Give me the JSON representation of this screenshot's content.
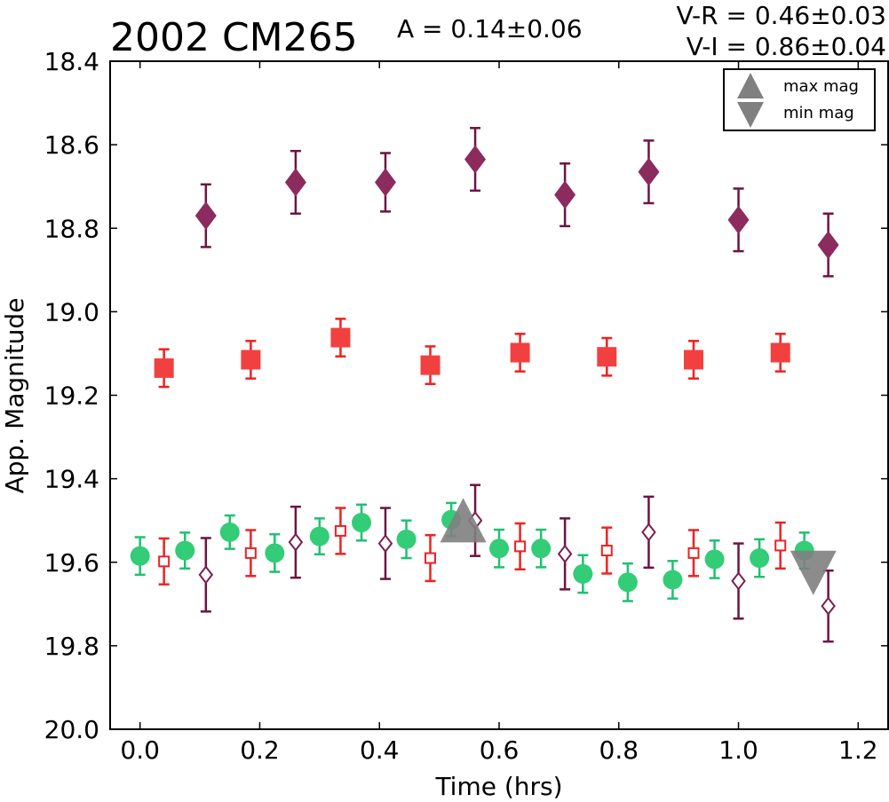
{
  "chart_data": {
    "type": "scatter",
    "title": "2002 CM265",
    "annotations": {
      "amplitude": "A  = 0.14±0.06",
      "vr": "V-R = 0.46±0.03",
      "vi": "V-I  = 0.86±0.04"
    },
    "xlabel": "Time (hrs)",
    "ylabel": "App. Magnitude",
    "xlim": [
      -0.05,
      1.25
    ],
    "ylim": [
      20.0,
      18.4
    ],
    "y_inverted": true,
    "x_ticks": [
      "0.0",
      "0.2",
      "0.4",
      "0.6",
      "0.8",
      "1.0",
      "1.2"
    ],
    "y_ticks": [
      "18.4",
      "18.6",
      "18.8",
      "19.0",
      "19.2",
      "19.4",
      "19.6",
      "19.8",
      "20.0"
    ],
    "legend": {
      "placement": "top-right",
      "entries": [
        {
          "label": "max mag",
          "marker": "triangle-up",
          "color": "#808080"
        },
        {
          "label": "min mag",
          "marker": "triangle-down",
          "color": "#808080"
        }
      ]
    },
    "series": [
      {
        "marker": "diamond-filled",
        "color": "#8b2b5e",
        "errcolor": "#6b1440",
        "x": [
          0.11,
          0.26,
          0.41,
          0.56,
          0.71,
          0.85,
          1.0,
          1.15
        ],
        "y": [
          18.77,
          18.69,
          18.69,
          18.635,
          18.72,
          18.665,
          18.78,
          18.84
        ],
        "err": [
          0.075,
          0.075,
          0.07,
          0.075,
          0.075,
          0.075,
          0.075,
          0.075
        ]
      },
      {
        "marker": "square-filled",
        "color": "#f24040",
        "errcolor": "#f02020",
        "x": [
          0.04,
          0.185,
          0.335,
          0.485,
          0.635,
          0.78,
          0.925,
          1.07
        ],
        "y": [
          19.135,
          19.115,
          19.062,
          19.128,
          19.098,
          19.108,
          19.115,
          19.098
        ],
        "err": [
          0.045,
          0.045,
          0.045,
          0.045,
          0.045,
          0.045,
          0.045,
          0.045
        ]
      },
      {
        "marker": "circle-filled",
        "color": "#33cc77",
        "errcolor": "#20c070",
        "x": [
          0.0,
          0.075,
          0.15,
          0.225,
          0.3,
          0.37,
          0.445,
          0.52,
          0.6,
          0.67,
          0.74,
          0.815,
          0.89,
          0.96,
          1.035,
          1.11
        ],
        "y": [
          19.585,
          19.572,
          19.528,
          19.578,
          19.538,
          19.505,
          19.545,
          19.498,
          19.567,
          19.567,
          19.628,
          19.648,
          19.642,
          19.593,
          19.59,
          19.572
        ],
        "err": [
          0.045,
          0.043,
          0.04,
          0.045,
          0.043,
          0.043,
          0.045,
          0.04,
          0.045,
          0.045,
          0.045,
          0.045,
          0.045,
          0.045,
          0.045,
          0.043
        ]
      },
      {
        "marker": "square-open",
        "color": "#ee2222",
        "errcolor": "#ee2222",
        "x": [
          0.04,
          0.185,
          0.335,
          0.485,
          0.635,
          0.78,
          0.925,
          1.07
        ],
        "y": [
          19.598,
          19.578,
          19.525,
          19.59,
          19.562,
          19.572,
          19.578,
          19.56
        ],
        "err": [
          0.055,
          0.055,
          0.055,
          0.055,
          0.055,
          0.055,
          0.055,
          0.055
        ]
      },
      {
        "marker": "diamond-open",
        "color": "#7b1f50",
        "errcolor": "#6b1440",
        "x": [
          0.11,
          0.26,
          0.41,
          0.56,
          0.71,
          0.85,
          1.0,
          1.15
        ],
        "y": [
          19.63,
          19.552,
          19.555,
          19.5,
          19.58,
          19.528,
          19.645,
          19.705
        ],
        "err": [
          0.088,
          0.085,
          0.085,
          0.085,
          0.085,
          0.085,
          0.09,
          0.085
        ]
      },
      {
        "marker": "triangle-up",
        "color": "#808080",
        "x": [
          0.54
        ],
        "y": [
          19.51
        ]
      },
      {
        "marker": "triangle-down",
        "color": "#808080",
        "x": [
          1.125
        ],
        "y": [
          19.615
        ]
      }
    ]
  }
}
